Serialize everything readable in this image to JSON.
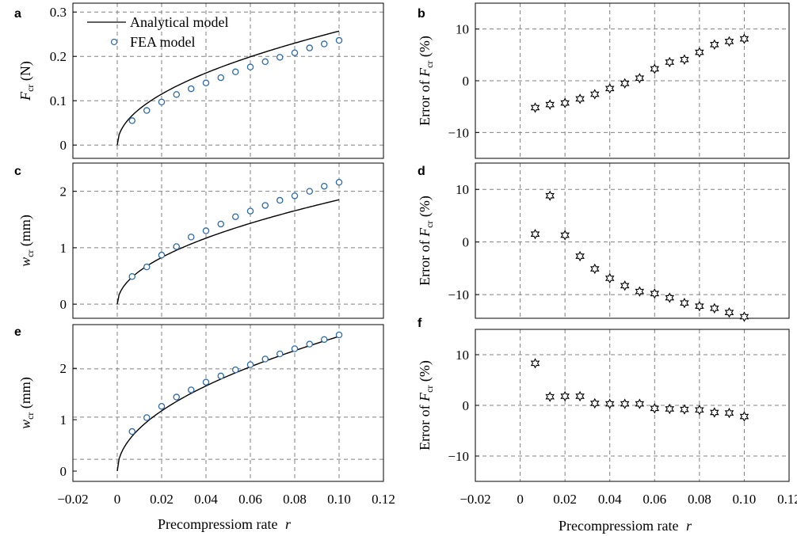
{
  "figure": {
    "xlabel_main": "Precompressiom rate",
    "xlabel_var": "r"
  },
  "legend": {
    "analytical": "Analytical model",
    "fea": "FEA model"
  },
  "colors": {
    "fea_marker": "#2f6aa8",
    "curve": "#000000",
    "grid": "#808080",
    "star": "#000000"
  },
  "chart_data": [
    {
      "panel": "a",
      "type": "line",
      "ylabel_main": "F",
      "ylabel_sub": "cr",
      "ylabel_unit": " (N)",
      "xlim": [
        -0.02,
        0.12
      ],
      "ylim": [
        -0.03,
        0.32
      ],
      "xticks": [],
      "yticks": [
        0,
        0.1,
        0.2,
        0.3
      ],
      "ytick_labels": [
        "0",
        "0.1",
        "0.2",
        "0.3"
      ],
      "grid": true,
      "legend": "top-left",
      "curve": {
        "name": "Analytical model",
        "x_end": 0.1,
        "y_end": 0.257
      },
      "series": [
        {
          "name": "FEA model",
          "x": [
            0.0067,
            0.0133,
            0.02,
            0.0267,
            0.0333,
            0.04,
            0.0467,
            0.0533,
            0.06,
            0.0667,
            0.0733,
            0.08,
            0.0867,
            0.0933,
            0.1
          ],
          "y": [
            0.055,
            0.078,
            0.097,
            0.114,
            0.127,
            0.14,
            0.152,
            0.165,
            0.176,
            0.188,
            0.198,
            0.208,
            0.219,
            0.228,
            0.236
          ]
        }
      ]
    },
    {
      "panel": "b",
      "type": "scatter",
      "ylabel_main": "Error of F",
      "ylabel_sub": "cr",
      "ylabel_unit": " (%)",
      "xlim": [
        -0.02,
        0.12
      ],
      "ylim": [
        -15,
        15
      ],
      "xticks": [],
      "yticks": [
        -10,
        0,
        10
      ],
      "ytick_labels": [
        "−10",
        "0",
        "10"
      ],
      "grid": true,
      "series": [
        {
          "name": "",
          "x": [
            0.0067,
            0.0133,
            0.02,
            0.0267,
            0.0333,
            0.04,
            0.0467,
            0.0533,
            0.06,
            0.0667,
            0.0733,
            0.08,
            0.0867,
            0.0933,
            0.1
          ],
          "y": [
            -5.2,
            -4.6,
            -4.3,
            -3.5,
            -2.6,
            -1.5,
            -0.5,
            0.5,
            2.3,
            3.6,
            4.1,
            5.5,
            7.0,
            7.6,
            8.1
          ]
        }
      ]
    },
    {
      "panel": "c",
      "type": "line",
      "ylabel_main": "w",
      "ylabel_sub": "cr",
      "ylabel_unit": " (mm)",
      "xlim": [
        -0.02,
        0.12
      ],
      "ylim": [
        -0.25,
        2.5
      ],
      "xticks": [],
      "yticks": [
        0,
        1,
        2
      ],
      "ytick_labels": [
        "0",
        "1",
        "2"
      ],
      "grid": true,
      "curve": {
        "name": "Analytical model",
        "x_end": 0.1,
        "y_end": 1.85
      },
      "series": [
        {
          "name": "FEA model",
          "x": [
            0.0067,
            0.0133,
            0.02,
            0.0267,
            0.0333,
            0.04,
            0.0467,
            0.0533,
            0.06,
            0.0667,
            0.0733,
            0.08,
            0.0867,
            0.0933,
            0.1
          ],
          "y": [
            0.49,
            0.66,
            0.87,
            1.02,
            1.19,
            1.3,
            1.42,
            1.55,
            1.65,
            1.75,
            1.84,
            1.92,
            2.0,
            2.09,
            2.16
          ]
        }
      ]
    },
    {
      "panel": "d",
      "type": "scatter",
      "ylabel_main": "Error of F",
      "ylabel_sub": "cr",
      "ylabel_unit": " (%)",
      "xlim": [
        -0.02,
        0.12
      ],
      "ylim": [
        -14.5,
        15
      ],
      "xticks": [],
      "yticks": [
        -10,
        0,
        10
      ],
      "ytick_labels": [
        "−10",
        "0",
        "10"
      ],
      "grid": true,
      "series": [
        {
          "name": "",
          "x": [
            0.0067,
            0.0133,
            0.02,
            0.0267,
            0.0333,
            0.04,
            0.0467,
            0.0533,
            0.06,
            0.0667,
            0.0733,
            0.08,
            0.0867,
            0.0933,
            0.1
          ],
          "y": [
            1.5,
            8.8,
            1.3,
            -2.7,
            -5.1,
            -6.9,
            -8.3,
            -9.4,
            -9.8,
            -10.6,
            -11.6,
            -12.2,
            -12.6,
            -13.4,
            -14.2
          ]
        }
      ]
    },
    {
      "panel": "e",
      "type": "line",
      "ylabel_main": "w",
      "ylabel_sub": "cr",
      "ylabel_unit": " (mm)",
      "xlim": [
        -0.02,
        0.12
      ],
      "xticks": [
        -0.02,
        0,
        0.02,
        0.04,
        0.06,
        0.08,
        0.1,
        0.12
      ],
      "xtick_labels": [
        "−0.02",
        "0",
        "0.02",
        "0.04",
        "0.06",
        "0.08",
        "0.10",
        "0.12"
      ],
      "ylim": [
        -0.2,
        2.85
      ],
      "yticks": [
        0,
        1,
        2
      ],
      "ytick_labels": [
        "0",
        "1",
        "2"
      ],
      "grid": true,
      "hgrid": [
        0.23,
        1.05,
        1.99
      ],
      "curve": {
        "name": "Analytical model",
        "x_end": 0.1,
        "y_end": 2.62
      },
      "series": [
        {
          "name": "FEA model",
          "x": [
            0.0067,
            0.0133,
            0.02,
            0.0267,
            0.0333,
            0.04,
            0.0467,
            0.0533,
            0.06,
            0.0667,
            0.0733,
            0.08,
            0.0867,
            0.0933,
            0.1
          ],
          "y": [
            0.77,
            1.04,
            1.26,
            1.44,
            1.58,
            1.73,
            1.85,
            1.97,
            2.07,
            2.18,
            2.28,
            2.38,
            2.47,
            2.56,
            2.65
          ]
        }
      ]
    },
    {
      "panel": "f",
      "type": "scatter",
      "ylabel_main": "Error of F",
      "ylabel_sub": "cr",
      "ylabel_unit": " (%)",
      "xlim": [
        -0.02,
        0.12
      ],
      "xticks": [
        -0.02,
        0,
        0.02,
        0.04,
        0.06,
        0.08,
        0.1,
        0.12
      ],
      "xtick_labels": [
        "−0.02",
        "0",
        "0.02",
        "0.04",
        "0.06",
        "0.08",
        "0.10",
        "0.12"
      ],
      "ylim": [
        -15,
        15
      ],
      "yticks": [
        -10,
        0,
        10
      ],
      "ytick_labels": [
        "−10",
        "0",
        "10"
      ],
      "grid": true,
      "series": [
        {
          "name": "",
          "x": [
            0.0067,
            0.0133,
            0.02,
            0.0267,
            0.0333,
            0.04,
            0.0467,
            0.0533,
            0.06,
            0.0667,
            0.0733,
            0.08,
            0.0867,
            0.0933,
            0.1
          ],
          "y": [
            8.3,
            1.7,
            1.8,
            1.8,
            0.4,
            0.3,
            0.3,
            0.3,
            -0.6,
            -0.7,
            -0.8,
            -0.9,
            -1.4,
            -1.5,
            -2.2
          ]
        }
      ]
    }
  ]
}
